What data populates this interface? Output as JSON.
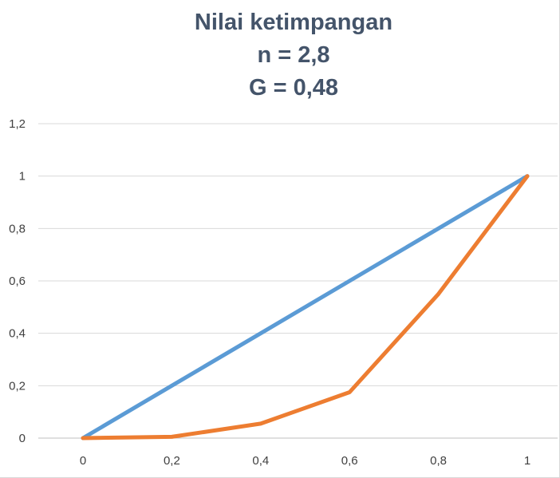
{
  "chart_data": {
    "type": "line",
    "title_lines": [
      "Nilai ketimpangan",
      "n = 2,8",
      "G = 0,48"
    ],
    "x_ticks": [
      "0",
      "0,2",
      "0,4",
      "0,6",
      "0,8",
      "1"
    ],
    "y_ticks": [
      "0",
      "0,2",
      "0,4",
      "0,6",
      "0,8",
      "1",
      "1,2"
    ],
    "xlim": [
      0,
      1
    ],
    "ylim": [
      0,
      1.2
    ],
    "grid": true,
    "legend": "none",
    "series": [
      {
        "x": [
          0,
          0.2,
          0.4,
          0.6,
          0.8,
          1
        ],
        "values": [
          0,
          0.2,
          0.4,
          0.6,
          0.8,
          1
        ],
        "color": "#5b9bd5"
      },
      {
        "x": [
          0,
          0.2,
          0.4,
          0.6,
          0.8,
          1
        ],
        "values": [
          0,
          0.005,
          0.055,
          0.175,
          0.55,
          1
        ],
        "color": "#ed7d31"
      }
    ]
  }
}
